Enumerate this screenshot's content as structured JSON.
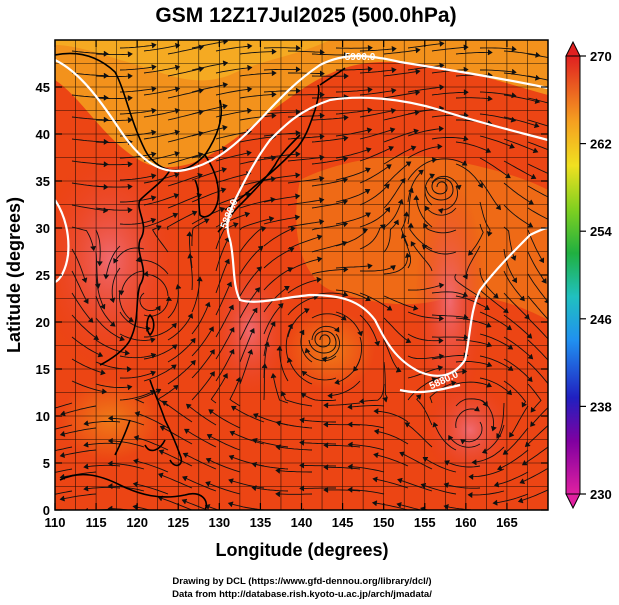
{
  "title": "GSM 12Z17Jul2025 (500.0hPa)",
  "map": {
    "x_axis": {
      "label": "Longitude (degrees)",
      "range": [
        110,
        170
      ],
      "ticks": [
        "110",
        "115",
        "120",
        "125",
        "130",
        "135",
        "140",
        "145",
        "150",
        "155",
        "160",
        "165"
      ]
    },
    "y_axis": {
      "label": "Latitude  (degrees)",
      "range": [
        0,
        50
      ],
      "ticks": [
        "0",
        "5",
        "10",
        "15",
        "20",
        "25",
        "30",
        "35",
        "40",
        "45"
      ]
    },
    "field": "temperature (K), 500 hPa",
    "overlays": [
      "streamlines",
      "geopotential height contours",
      "coastlines",
      "1-degree grid"
    ],
    "contour_labels": [
      "5900.0",
      "5880.0",
      "5880.0"
    ],
    "colors": {
      "low": "#dd1010",
      "mid": "#ee4a10",
      "high": "#f5a020"
    }
  },
  "colorbar": {
    "ticks": [
      "270",
      "262",
      "254",
      "246",
      "238",
      "230"
    ],
    "range": [
      230,
      270
    ]
  },
  "credits": [
    "Drawing by DCL (https://www.gfd-dennou.org/library/dcl/)",
    "Data from http://database.rish.kyoto-u.ac.jp/arch/jmadata/"
  ]
}
